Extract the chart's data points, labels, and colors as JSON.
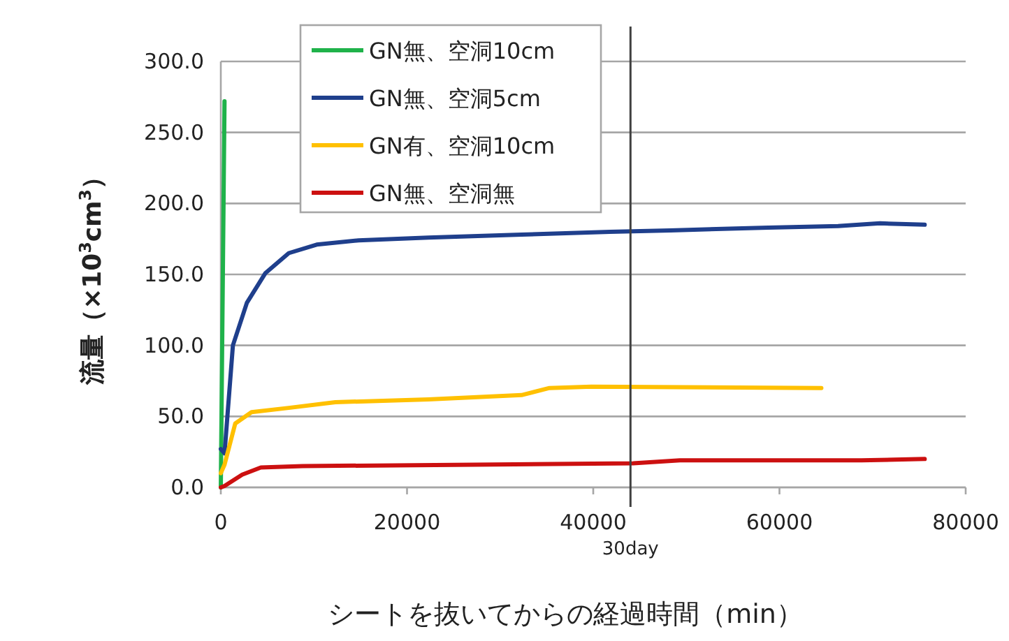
{
  "chart_data": {
    "type": "line",
    "xlabel": "シートを抜いてからの経過時間（min）",
    "ylabel": "流量（×10$^{3}$cm$^{3}$）",
    "xlim": [
      0,
      80000
    ],
    "xticks": [
      0,
      20000,
      40000,
      60000,
      80000
    ],
    "ylim": [
      0,
      300
    ],
    "yticks": [
      {
        "value": 0,
        "label": "0.0"
      },
      {
        "value": 50,
        "label": "50.0"
      },
      {
        "value": 100,
        "label": "100.0"
      },
      {
        "value": 150,
        "label": "150.0"
      },
      {
        "value": 200,
        "label": "200.0"
      },
      {
        "value": 250,
        "label": "250.0"
      },
      {
        "value": 300,
        "label": "300.0"
      }
    ],
    "grid": "y",
    "legend": "top left",
    "marker": "none",
    "line_style": "solid",
    "ref_lines": [
      {
        "axis": "x",
        "value": 44000,
        "label": "30day",
        "color": "#404040"
      }
    ],
    "series": [
      {
        "name": "GN無、空洞10cm",
        "color": "#1fb24a",
        "x": [
          0,
          400
        ],
        "values": [
          0,
          272
        ]
      },
      {
        "name": "GN無、空洞5cm",
        "color": "#1f3f8c",
        "x": [
          0,
          400,
          1300,
          2800,
          4800,
          7300,
          10300,
          14800,
          22300,
          32300,
          41800,
          48300,
          58800,
          66300,
          70800,
          75600
        ],
        "values": [
          27,
          24,
          100,
          130,
          151,
          165,
          171,
          174,
          176,
          178,
          180,
          181,
          183,
          184,
          186,
          185
        ]
      },
      {
        "name": "GN有、空洞10cm",
        "color": "#ffc000",
        "x": [
          0,
          400,
          1550,
          3300,
          7300,
          12300,
          22300,
          32300,
          35300,
          39800,
          64500
        ],
        "values": [
          10,
          16,
          45,
          53,
          56,
          60,
          62,
          65,
          70,
          71,
          70
        ]
      },
      {
        "name": "GN無、空洞無",
        "color": "#cc1010",
        "x": [
          0,
          400,
          2300,
          4300,
          8800,
          27300,
          44300,
          49300,
          68800,
          75600
        ],
        "values": [
          0,
          1,
          9,
          14,
          15,
          16,
          17,
          19,
          19,
          20
        ]
      }
    ]
  }
}
